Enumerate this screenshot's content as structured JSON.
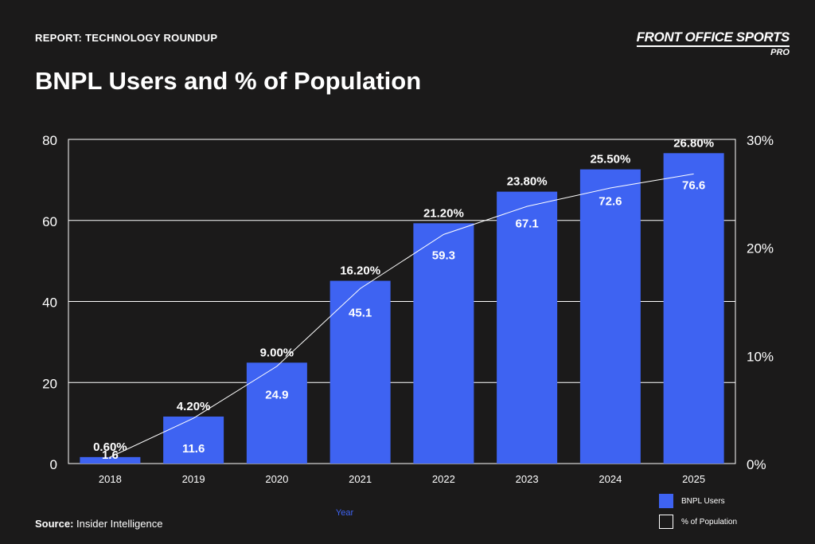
{
  "header": {
    "kicker": "REPORT: TECHNOLOGY ROUNDUP",
    "title": "BNPL Users and % of Population",
    "brand_main": "FRONT OFFICE SPORTS",
    "brand_sub": "PRO"
  },
  "footer": {
    "source_label": "Source:",
    "source_value": "Insider Intelligence"
  },
  "colors": {
    "background": "#1b1a1a",
    "bar": "#3e63f2",
    "line": "#ffffff",
    "xlabel": "#3e63f2"
  },
  "chart_data": {
    "type": "bar",
    "categories": [
      "2018",
      "2019",
      "2020",
      "2021",
      "2022",
      "2023",
      "2024",
      "2025"
    ],
    "series": [
      {
        "name": "BNPL Users",
        "type": "bar",
        "axis": "left",
        "values": [
          1.6,
          11.6,
          24.9,
          45.1,
          59.3,
          67.1,
          72.6,
          76.6
        ],
        "labels": [
          "1.6",
          "11.6",
          "24.9",
          "45.1",
          "59.3",
          "67.1",
          "72.6",
          "76.6"
        ]
      },
      {
        "name": "% of Population",
        "type": "line",
        "axis": "right",
        "values": [
          0.6,
          4.2,
          9.0,
          16.2,
          21.2,
          23.8,
          25.5,
          26.8
        ],
        "labels": [
          "0.60%",
          "4.20%",
          "9.00%",
          "16.20%",
          "21.20%",
          "23.80%",
          "25.50%",
          "26.80%"
        ]
      }
    ],
    "xlabel": "Year",
    "ylabel": "",
    "ylim": [
      0,
      80
    ],
    "y_ticks": [
      "0",
      "20",
      "40",
      "60",
      "80"
    ],
    "y_tick_values": [
      0,
      20,
      40,
      60,
      80
    ],
    "y2lim": [
      0,
      30
    ],
    "y2_ticks": [
      "0%",
      "10%",
      "20%",
      "30%"
    ],
    "y2_tick_values": [
      0,
      10,
      20,
      30
    ],
    "grid": true,
    "legend_position": "bottom-right"
  }
}
